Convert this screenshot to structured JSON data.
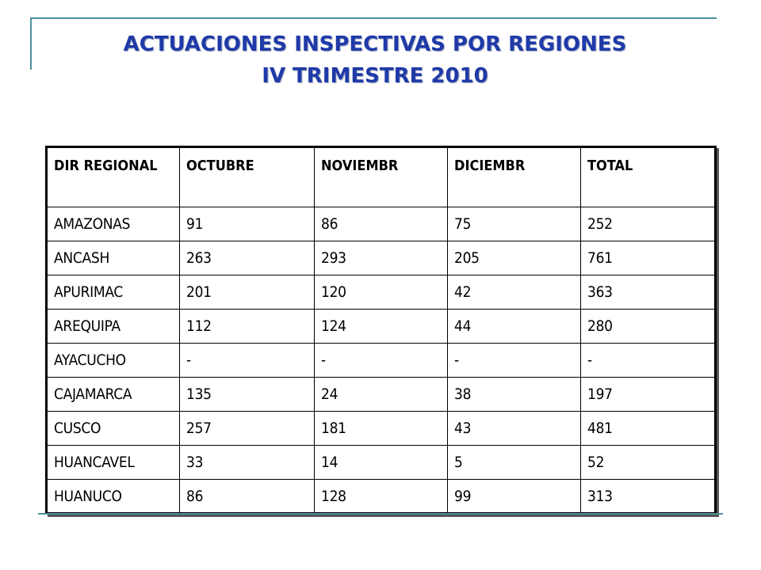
{
  "title": {
    "line1": "ACTUACIONES INSPECTIVAS POR REGIONES",
    "line2": "IV TRIMESTRE 2010"
  },
  "table": {
    "headers": [
      "DIR REGIONAL",
      "OCTUBRE",
      "NOVIEMBR",
      "DICIEMBR",
      "TOTAL"
    ],
    "rows": [
      [
        "AMAZONAS",
        "91",
        "86",
        "75",
        "252"
      ],
      [
        "ANCASH",
        "263",
        "293",
        "205",
        "761"
      ],
      [
        "APURIMAC",
        "201",
        "120",
        "42",
        "363"
      ],
      [
        "AREQUIPA",
        "112",
        "124",
        "44",
        "280"
      ],
      [
        "AYACUCHO",
        "-",
        "-",
        "-",
        "-"
      ],
      [
        "CAJAMARCA",
        "135",
        "24",
        "38",
        "197"
      ],
      [
        "CUSCO",
        "257",
        "181",
        "43",
        "481"
      ],
      [
        "HUANCAVEL",
        "33",
        "14",
        "5",
        "52"
      ],
      [
        "HUANUCO",
        "86",
        "128",
        "99",
        "313"
      ]
    ]
  },
  "colors": {
    "title": "#1f3aa8",
    "accent_lines": "#4a8f9a"
  }
}
